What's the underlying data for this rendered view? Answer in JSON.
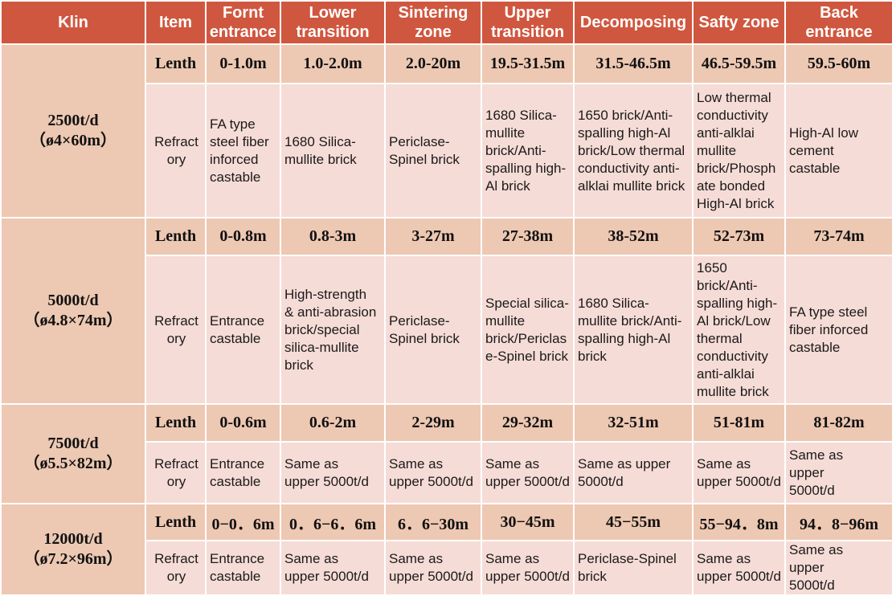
{
  "headers": [
    "Klin",
    "Item",
    "Fornt entrance",
    "Lower transition",
    "Sintering zone",
    "Upper transition",
    "Decomposing",
    "Safty zone",
    "Back entrance"
  ],
  "header_lines": [
    [
      "Klin"
    ],
    [
      "Item"
    ],
    [
      "Fornt",
      "entrance"
    ],
    [
      "Lower",
      "transition"
    ],
    [
      "Sintering",
      "zone"
    ],
    [
      "Upper",
      "transition"
    ],
    [
      "Decomposing"
    ],
    [
      "Safty zone"
    ],
    [
      "Back",
      "entrance"
    ]
  ],
  "groups": [
    {
      "kiln": [
        "2500t/d",
        "（ø4×60m）"
      ],
      "length_label": "Lenth",
      "lengths": [
        "0-1.0m",
        "1.0-2.0m",
        "2.0-20m",
        "19.5-31.5m",
        "31.5-46.5m",
        "46.5-59.5m",
        "59.5-60m"
      ],
      "refractory_label": [
        "Refract",
        "ory"
      ],
      "refractory": [
        [
          "FA type",
          "steel fiber",
          "inforced",
          "castable"
        ],
        [
          "1680 Silica-",
          "mullite brick"
        ],
        [
          "Periclase-",
          "Spinel brick"
        ],
        [
          "1680 Silica-",
          "mullite",
          "brick/Anti-",
          "spalling high-",
          "Al brick"
        ],
        [
          "1650 brick/Anti-",
          "spalling high-Al",
          "brick/Low thermal",
          "conductivity anti-",
          "alklai mullite brick"
        ],
        [
          "Low thermal",
          "conductivity",
          "anti-alklai",
          "mullite",
          "brick/Phosph",
          "ate bonded",
          "High-Al brick"
        ],
        [
          "High-Al low",
          "cement",
          "castable"
        ]
      ]
    },
    {
      "kiln": [
        "5000t/d",
        "（ø4.8×74m）"
      ],
      "length_label": "Lenth",
      "lengths": [
        "0-0.8m",
        "0.8-3m",
        "3-27m",
        "27-38m",
        "38-52m",
        "52-73m",
        "73-74m"
      ],
      "refractory_label": [
        "Refract",
        "ory"
      ],
      "refractory": [
        [
          "Entrance",
          "castable"
        ],
        [
          "High-strength",
          "& anti-abrasion",
          "brick/special",
          "silica-mullite",
          "brick"
        ],
        [
          "Periclase-",
          "Spinel brick"
        ],
        [
          "Special silica-",
          "mullite",
          "brick/Periclas",
          "e-Spinel brick"
        ],
        [
          "1680 Silica-",
          "mullite brick/Anti-",
          "spalling high-Al",
          "brick"
        ],
        [
          "1650",
          "brick/Anti-",
          "spalling high-",
          "Al brick/Low",
          "thermal",
          "conductivity",
          "anti-alklai",
          "mullite brick"
        ],
        [
          "FA type steel",
          "fiber inforced",
          "castable"
        ]
      ]
    },
    {
      "kiln": [
        "7500t/d",
        "（ø5.5×82m）"
      ],
      "length_label": "Lenth",
      "lengths": [
        "0-0.6m",
        "0.6-2m",
        "2-29m",
        "29-32m",
        "32-51m",
        "51-81m",
        "81-82m"
      ],
      "refractory_label": [
        "Refract",
        "ory"
      ],
      "refractory": [
        [
          "Entrance",
          "castable"
        ],
        [
          "Same as",
          "upper 5000t/d"
        ],
        [
          "Same as",
          "upper 5000t/d"
        ],
        [
          "Same as",
          "upper 5000t/d"
        ],
        [
          "Same as upper",
          "5000t/d"
        ],
        [
          "Same as",
          "upper 5000t/d"
        ],
        [
          "Same as",
          "upper",
          "5000t/d"
        ]
      ]
    },
    {
      "kiln": [
        "12000t/d",
        "（ø7.2×96m）"
      ],
      "length_label": "Lenth",
      "lengths": [
        "0−0．6m",
        "0．6−6．6m",
        "6．6−30m",
        "30−45m",
        "45−55m",
        "55−94．8m",
        "94．8−96m"
      ],
      "refractory_label": [
        "Refract",
        "ory"
      ],
      "refractory": [
        [
          "Entrance",
          "castable"
        ],
        [
          "Same as",
          "upper 5000t/d"
        ],
        [
          "Same as",
          "upper 5000t/d"
        ],
        [
          "Same as",
          "upper 5000t/d"
        ],
        [
          "Periclase-Spinel",
          "brick"
        ],
        [
          "Same as",
          "upper 5000t/d"
        ],
        [
          "Same as",
          "upper",
          "5000t/d"
        ]
      ]
    }
  ]
}
